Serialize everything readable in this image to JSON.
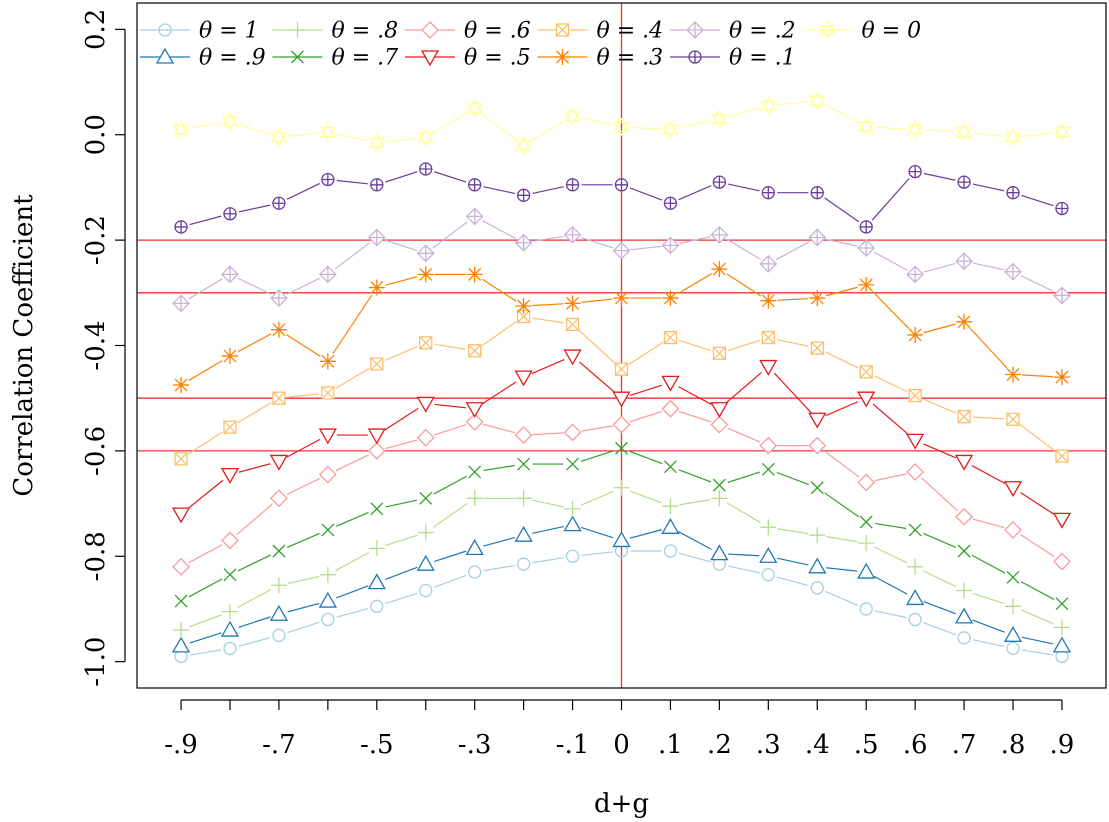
{
  "chart_data": {
    "type": "line",
    "xlabel": "d+g",
    "ylabel": "Correlation Coefficient",
    "x": [
      -0.9,
      -0.8,
      -0.7,
      -0.6,
      -0.5,
      -0.4,
      -0.3,
      -0.2,
      -0.1,
      0,
      0.1,
      0.2,
      0.3,
      0.4,
      0.5,
      0.6,
      0.7,
      0.8,
      0.9
    ],
    "x_tick_values": [
      -0.9,
      -0.7,
      -0.5,
      -0.3,
      -0.1,
      0,
      0.1,
      0.2,
      0.3,
      0.4,
      0.5,
      0.6,
      0.7,
      0.8,
      0.9
    ],
    "x_tick_labels": [
      "-.9",
      "-.7",
      "-.5",
      "-.3",
      "-.1",
      "0",
      ".1",
      ".2",
      ".3",
      ".4",
      ".5",
      ".6",
      ".7",
      ".8",
      ".9"
    ],
    "y_tick_values": [
      0.2,
      0.0,
      -0.2,
      -0.4,
      -0.6,
      -0.8,
      -1.0
    ],
    "y_tick_labels": [
      "0.2",
      "0.0",
      "-0.2",
      "-0.4",
      "-0.6",
      "-0.8",
      "-1.0"
    ],
    "xlim": [
      -0.99,
      0.99
    ],
    "ylim": [
      -1.05,
      0.25
    ],
    "reference_lines": {
      "horizontal": [
        -0.2,
        -0.3,
        -0.5,
        -0.6
      ],
      "vertical": [
        0
      ],
      "color": "#ee3333"
    },
    "legend_position": "top, inside plot, 6 columns",
    "series": [
      {
        "name": "θ = 1",
        "color": "#a6cee3",
        "marker": "circle",
        "values": [
          -0.99,
          -0.975,
          -0.95,
          -0.92,
          -0.895,
          -0.865,
          -0.83,
          -0.815,
          -0.8,
          -0.79,
          -0.79,
          -0.815,
          -0.835,
          -0.86,
          -0.9,
          -0.92,
          -0.955,
          -0.975,
          -0.99
        ]
      },
      {
        "name": "θ = .9",
        "color": "#1f78b4",
        "marker": "triangle-up",
        "values": [
          -0.97,
          -0.94,
          -0.91,
          -0.885,
          -0.85,
          -0.815,
          -0.785,
          -0.76,
          -0.74,
          -0.77,
          -0.745,
          -0.795,
          -0.8,
          -0.82,
          -0.83,
          -0.88,
          -0.915,
          -0.95,
          -0.97
        ]
      },
      {
        "name": "θ = .8",
        "color": "#b2df8a",
        "marker": "plus",
        "values": [
          -0.94,
          -0.905,
          -0.855,
          -0.835,
          -0.785,
          -0.755,
          -0.69,
          -0.69,
          -0.71,
          -0.67,
          -0.705,
          -0.69,
          -0.745,
          -0.76,
          -0.775,
          -0.82,
          -0.865,
          -0.895,
          -0.935
        ]
      },
      {
        "name": "θ = .7",
        "color": "#33a02c",
        "marker": "x",
        "values": [
          -0.885,
          -0.835,
          -0.79,
          -0.75,
          -0.71,
          -0.69,
          -0.64,
          -0.625,
          -0.625,
          -0.595,
          -0.63,
          -0.665,
          -0.635,
          -0.67,
          -0.735,
          -0.75,
          -0.79,
          -0.84,
          -0.89
        ]
      },
      {
        "name": "θ = .6",
        "color": "#fb9a99",
        "marker": "diamond",
        "values": [
          -0.82,
          -0.77,
          -0.69,
          -0.645,
          -0.6,
          -0.575,
          -0.545,
          -0.57,
          -0.565,
          -0.55,
          -0.52,
          -0.55,
          -0.59,
          -0.59,
          -0.66,
          -0.64,
          -0.725,
          -0.75,
          -0.81
        ]
      },
      {
        "name": "θ = .5",
        "color": "#e31a1c",
        "marker": "triangle-down",
        "values": [
          -0.72,
          -0.645,
          -0.62,
          -0.57,
          -0.57,
          -0.51,
          -0.52,
          -0.46,
          -0.42,
          -0.5,
          -0.47,
          -0.52,
          -0.44,
          -0.54,
          -0.5,
          -0.58,
          -0.62,
          -0.67,
          -0.73
        ]
      },
      {
        "name": "θ = .4",
        "color": "#fdbf6f",
        "marker": "square-x",
        "values": [
          -0.615,
          -0.555,
          -0.5,
          -0.49,
          -0.435,
          -0.395,
          -0.41,
          -0.345,
          -0.36,
          -0.445,
          -0.385,
          -0.415,
          -0.385,
          -0.405,
          -0.45,
          -0.495,
          -0.535,
          -0.54,
          -0.61
        ]
      },
      {
        "name": "θ = .3",
        "color": "#ff7f00",
        "marker": "asterisk",
        "values": [
          -0.475,
          -0.42,
          -0.37,
          -0.43,
          -0.29,
          -0.265,
          -0.265,
          -0.325,
          -0.32,
          -0.31,
          -0.31,
          -0.255,
          -0.315,
          -0.31,
          -0.285,
          -0.38,
          -0.355,
          -0.455,
          -0.46
        ]
      },
      {
        "name": "θ = .2",
        "color": "#cab2d6",
        "marker": "diamond-plus",
        "values": [
          -0.32,
          -0.265,
          -0.31,
          -0.265,
          -0.195,
          -0.225,
          -0.155,
          -0.205,
          -0.19,
          -0.22,
          -0.21,
          -0.19,
          -0.245,
          -0.195,
          -0.215,
          -0.265,
          -0.24,
          -0.26,
          -0.305
        ]
      },
      {
        "name": "θ = .1",
        "color": "#6a3d9a",
        "marker": "circle-plus",
        "values": [
          -0.175,
          -0.15,
          -0.13,
          -0.085,
          -0.095,
          -0.065,
          -0.095,
          -0.115,
          -0.095,
          -0.095,
          -0.13,
          -0.09,
          -0.11,
          -0.11,
          -0.175,
          -0.07,
          -0.09,
          -0.11,
          -0.14
        ]
      },
      {
        "name": "θ = 0",
        "color": "#ffff99",
        "marker": "star-of-david",
        "values": [
          0.01,
          0.025,
          -0.005,
          0.005,
          -0.015,
          -0.005,
          0.05,
          -0.02,
          0.035,
          0.015,
          0.01,
          0.03,
          0.055,
          0.065,
          0.015,
          0.01,
          0.005,
          -0.005,
          0.005
        ]
      }
    ]
  }
}
